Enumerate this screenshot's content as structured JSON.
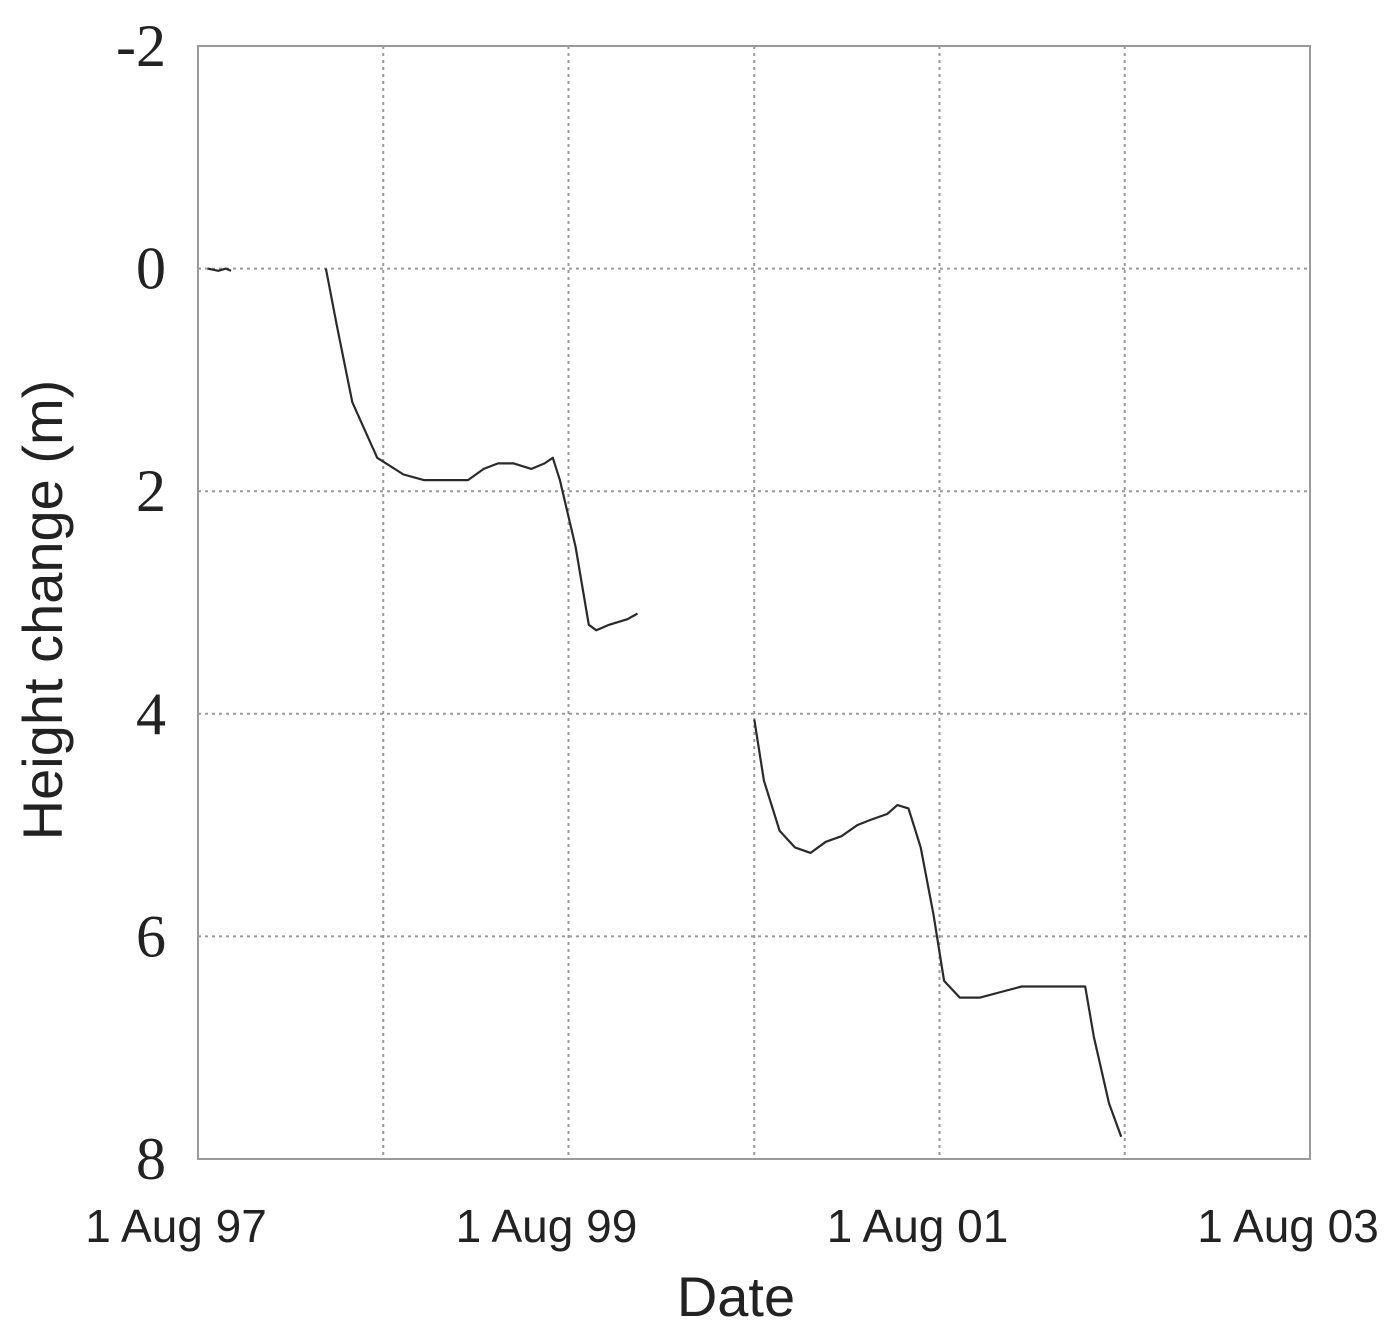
{
  "chart_data": {
    "type": "line",
    "title": "",
    "xlabel": "Date",
    "ylabel": "Height change (m)",
    "x_type": "date",
    "xlim": [
      "1997-08-01",
      "2003-08-01"
    ],
    "ylim": [
      8,
      -2
    ],
    "y_inverted": true,
    "grid": true,
    "x_ticks": [
      {
        "value": "1997-08-01",
        "label": "1 Aug 97"
      },
      {
        "value": "1999-08-01",
        "label": "1 Aug 99"
      },
      {
        "value": "2001-08-01",
        "label": "1 Aug 01"
      },
      {
        "value": "2003-08-01",
        "label": "1 Aug 03"
      }
    ],
    "y_ticks": [
      -2,
      0,
      2,
      4,
      6,
      8
    ],
    "x_gridlines": [
      "1997-08-01",
      "1998-08-01",
      "1999-08-01",
      "2000-08-01",
      "2001-08-01",
      "2002-08-01",
      "2003-08-01"
    ],
    "y_gridlines": [
      -2,
      0,
      2,
      4,
      6,
      8
    ],
    "series": [
      {
        "segments": [
          [
            {
              "x": "1997-08-20",
              "y": 0.0
            },
            {
              "x": "1997-09-10",
              "y": 0.02
            },
            {
              "x": "1997-09-25",
              "y": 0.0
            },
            {
              "x": "1997-10-05",
              "y": 0.02
            }
          ],
          [
            {
              "x": "1998-04-10",
              "y": 0.0
            },
            {
              "x": "1998-05-01",
              "y": 0.5
            },
            {
              "x": "1998-06-01",
              "y": 1.2
            },
            {
              "x": "1998-07-20",
              "y": 1.7
            },
            {
              "x": "1998-09-10",
              "y": 1.85
            },
            {
              "x": "1998-10-20",
              "y": 1.9
            },
            {
              "x": "1998-12-01",
              "y": 1.9
            },
            {
              "x": "1999-01-15",
              "y": 1.9
            },
            {
              "x": "1999-02-15",
              "y": 1.8
            },
            {
              "x": "1999-03-15",
              "y": 1.75
            },
            {
              "x": "1999-04-15",
              "y": 1.75
            },
            {
              "x": "1999-05-20",
              "y": 1.8
            },
            {
              "x": "1999-06-15",
              "y": 1.75
            },
            {
              "x": "1999-07-01",
              "y": 1.7
            },
            {
              "x": "1999-07-15",
              "y": 1.9
            },
            {
              "x": "1999-08-15",
              "y": 2.5
            },
            {
              "x": "1999-09-10",
              "y": 3.2
            },
            {
              "x": "1999-09-25",
              "y": 3.25
            },
            {
              "x": "1999-10-20",
              "y": 3.2
            },
            {
              "x": "1999-11-25",
              "y": 3.15
            },
            {
              "x": "1999-12-15",
              "y": 3.1
            }
          ],
          [
            {
              "x": "2000-08-01",
              "y": 4.05
            },
            {
              "x": "2000-08-20",
              "y": 4.6
            },
            {
              "x": "2000-09-20",
              "y": 5.05
            },
            {
              "x": "2000-10-20",
              "y": 5.2
            },
            {
              "x": "2000-11-20",
              "y": 5.25
            },
            {
              "x": "2000-12-20",
              "y": 5.15
            },
            {
              "x": "2001-01-20",
              "y": 5.1
            },
            {
              "x": "2001-02-20",
              "y": 5.0
            },
            {
              "x": "2001-03-20",
              "y": 4.95
            },
            {
              "x": "2001-04-20",
              "y": 4.9
            },
            {
              "x": "2001-05-10",
              "y": 4.82
            },
            {
              "x": "2001-06-01",
              "y": 4.85
            },
            {
              "x": "2001-06-25",
              "y": 5.2
            },
            {
              "x": "2001-07-20",
              "y": 5.8
            },
            {
              "x": "2001-08-10",
              "y": 6.4
            },
            {
              "x": "2001-09-10",
              "y": 6.55
            },
            {
              "x": "2001-10-20",
              "y": 6.55
            },
            {
              "x": "2001-11-30",
              "y": 6.5
            },
            {
              "x": "2002-01-10",
              "y": 6.45
            },
            {
              "x": "2002-02-20",
              "y": 6.45
            },
            {
              "x": "2002-03-20",
              "y": 6.45
            },
            {
              "x": "2002-04-20",
              "y": 6.45
            },
            {
              "x": "2002-05-15",
              "y": 6.45
            },
            {
              "x": "2002-06-01",
              "y": 6.9
            },
            {
              "x": "2002-07-01",
              "y": 7.5
            },
            {
              "x": "2002-07-25",
              "y": 7.8
            }
          ]
        ]
      }
    ]
  }
}
